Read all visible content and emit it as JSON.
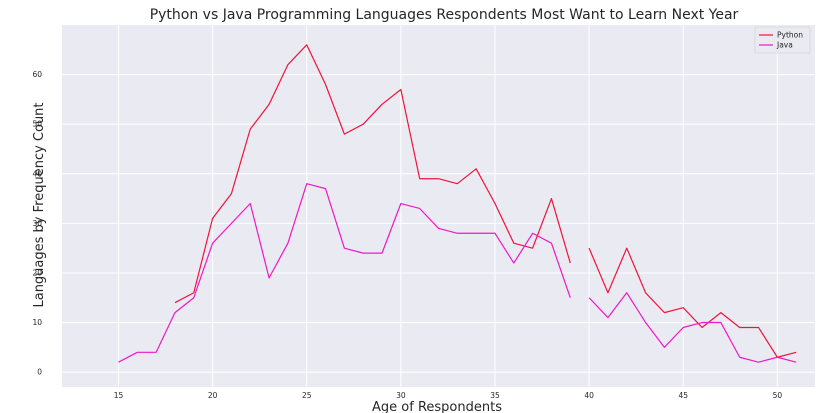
{
  "chart_data": {
    "type": "line",
    "title": "Python vs Java Programming Languages Respondents Most Want to Learn Next Year",
    "xlabel": "Age of Respondents",
    "ylabel": "Languages by Frequency Count",
    "xlim": [
      12,
      52
    ],
    "ylim": [
      -3,
      70
    ],
    "x_ticks": [
      15,
      20,
      25,
      30,
      35,
      40,
      45,
      50
    ],
    "y_ticks": [
      0,
      10,
      20,
      30,
      40,
      50,
      60
    ],
    "grid": true,
    "legend_position": "top-right",
    "background": "#eaeaf2",
    "series": [
      {
        "name": "Python",
        "color": "#f0143c",
        "x": [
          15,
          16,
          17,
          18,
          19,
          20,
          21,
          22,
          23,
          24,
          25,
          26,
          27,
          28,
          29,
          30,
          31,
          32,
          33,
          34,
          35,
          36,
          37,
          38,
          39,
          40,
          41,
          42,
          43,
          44,
          45,
          46,
          47,
          48,
          49,
          50,
          51
        ],
        "values": [
          null,
          null,
          null,
          14,
          16,
          31,
          36,
          49,
          54,
          62,
          66,
          58,
          48,
          50,
          54,
          57,
          39,
          39,
          38,
          41,
          34,
          26,
          25,
          35,
          22,
          25,
          16,
          25,
          16,
          12,
          13,
          9,
          12,
          9,
          9,
          3,
          4
        ]
      },
      {
        "name": "Java",
        "color": "#f018c8",
        "x": [
          15,
          16,
          17,
          18,
          19,
          20,
          21,
          22,
          23,
          24,
          25,
          26,
          27,
          28,
          29,
          30,
          31,
          32,
          33,
          34,
          35,
          36,
          37,
          38,
          39,
          40,
          41,
          42,
          43,
          44,
          45,
          46,
          47,
          48,
          49,
          50,
          51
        ],
        "values": [
          2,
          4,
          4,
          12,
          15,
          26,
          30,
          34,
          19,
          26,
          38,
          37,
          25,
          24,
          24,
          34,
          33,
          29,
          28,
          28,
          28,
          22,
          28,
          26,
          15,
          15,
          11,
          16,
          10,
          5,
          9,
          10,
          10,
          3,
          2,
          3,
          2
        ]
      }
    ]
  }
}
